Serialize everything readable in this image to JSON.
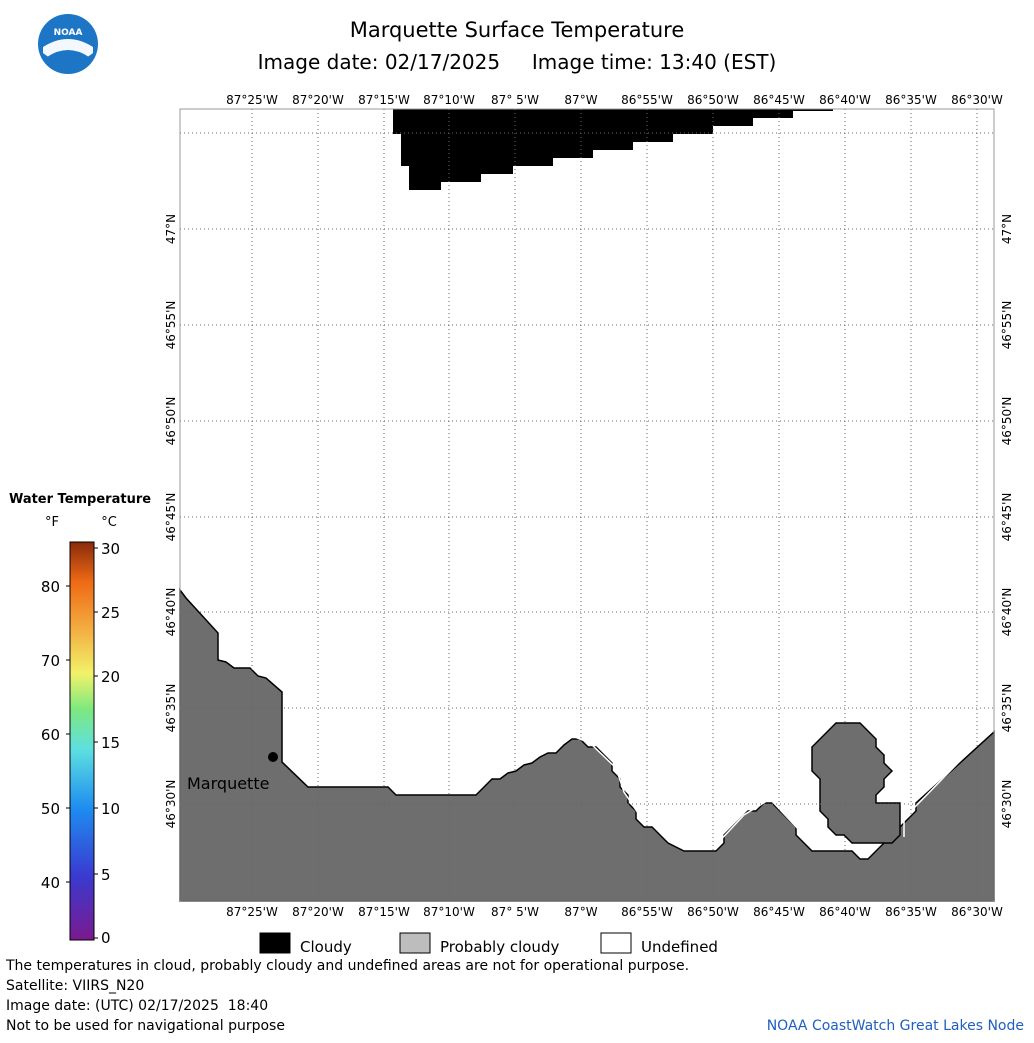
{
  "header": {
    "title": "Marquette Surface Temperature",
    "subtitle_date": "Image date: 02/17/2025",
    "subtitle_time": "Image time: 13:40 (EST)",
    "logo_text": "NOAA"
  },
  "map": {
    "lon_labels": [
      "87°25'W",
      "87°20'W",
      "87°15'W",
      "87°10'W",
      "87° 5'W",
      "87°W",
      "86°55'W",
      "86°50'W",
      "86°45'W",
      "86°40'W",
      "86°35'W",
      "86°30'W"
    ],
    "lat_labels": [
      "47°N",
      "46°55'N",
      "46°50'N",
      "46°45'N",
      "46°40'N",
      "46°35'N",
      "46°30'N"
    ],
    "city_label": "Marquette",
    "colors": {
      "land": "#6e6e6e",
      "cloud": "#000000",
      "water": "#ffffff",
      "grid": "#555555"
    }
  },
  "colorbar": {
    "title": "Water Temperature",
    "unit_f": "°F",
    "unit_c": "°C",
    "f_ticks": [
      "80",
      "70",
      "60",
      "50",
      "40"
    ],
    "c_ticks": [
      "30",
      "25",
      "20",
      "15",
      "10",
      "5",
      "0"
    ]
  },
  "legend": {
    "cloudy": "Cloudy",
    "probably_cloudy": "Probably cloudy",
    "undefined": "Undefined"
  },
  "footer": {
    "line1": "The temperatures in cloud, probably cloudy and undefined areas are not for operational purpose.",
    "line2": "Satellite: VIIRS_N20",
    "line3": "Image date: (UTC) 02/17/2025  18:40",
    "line4": "Not to be used for navigational purpose",
    "credit": "NOAA CoastWatch Great Lakes Node"
  }
}
